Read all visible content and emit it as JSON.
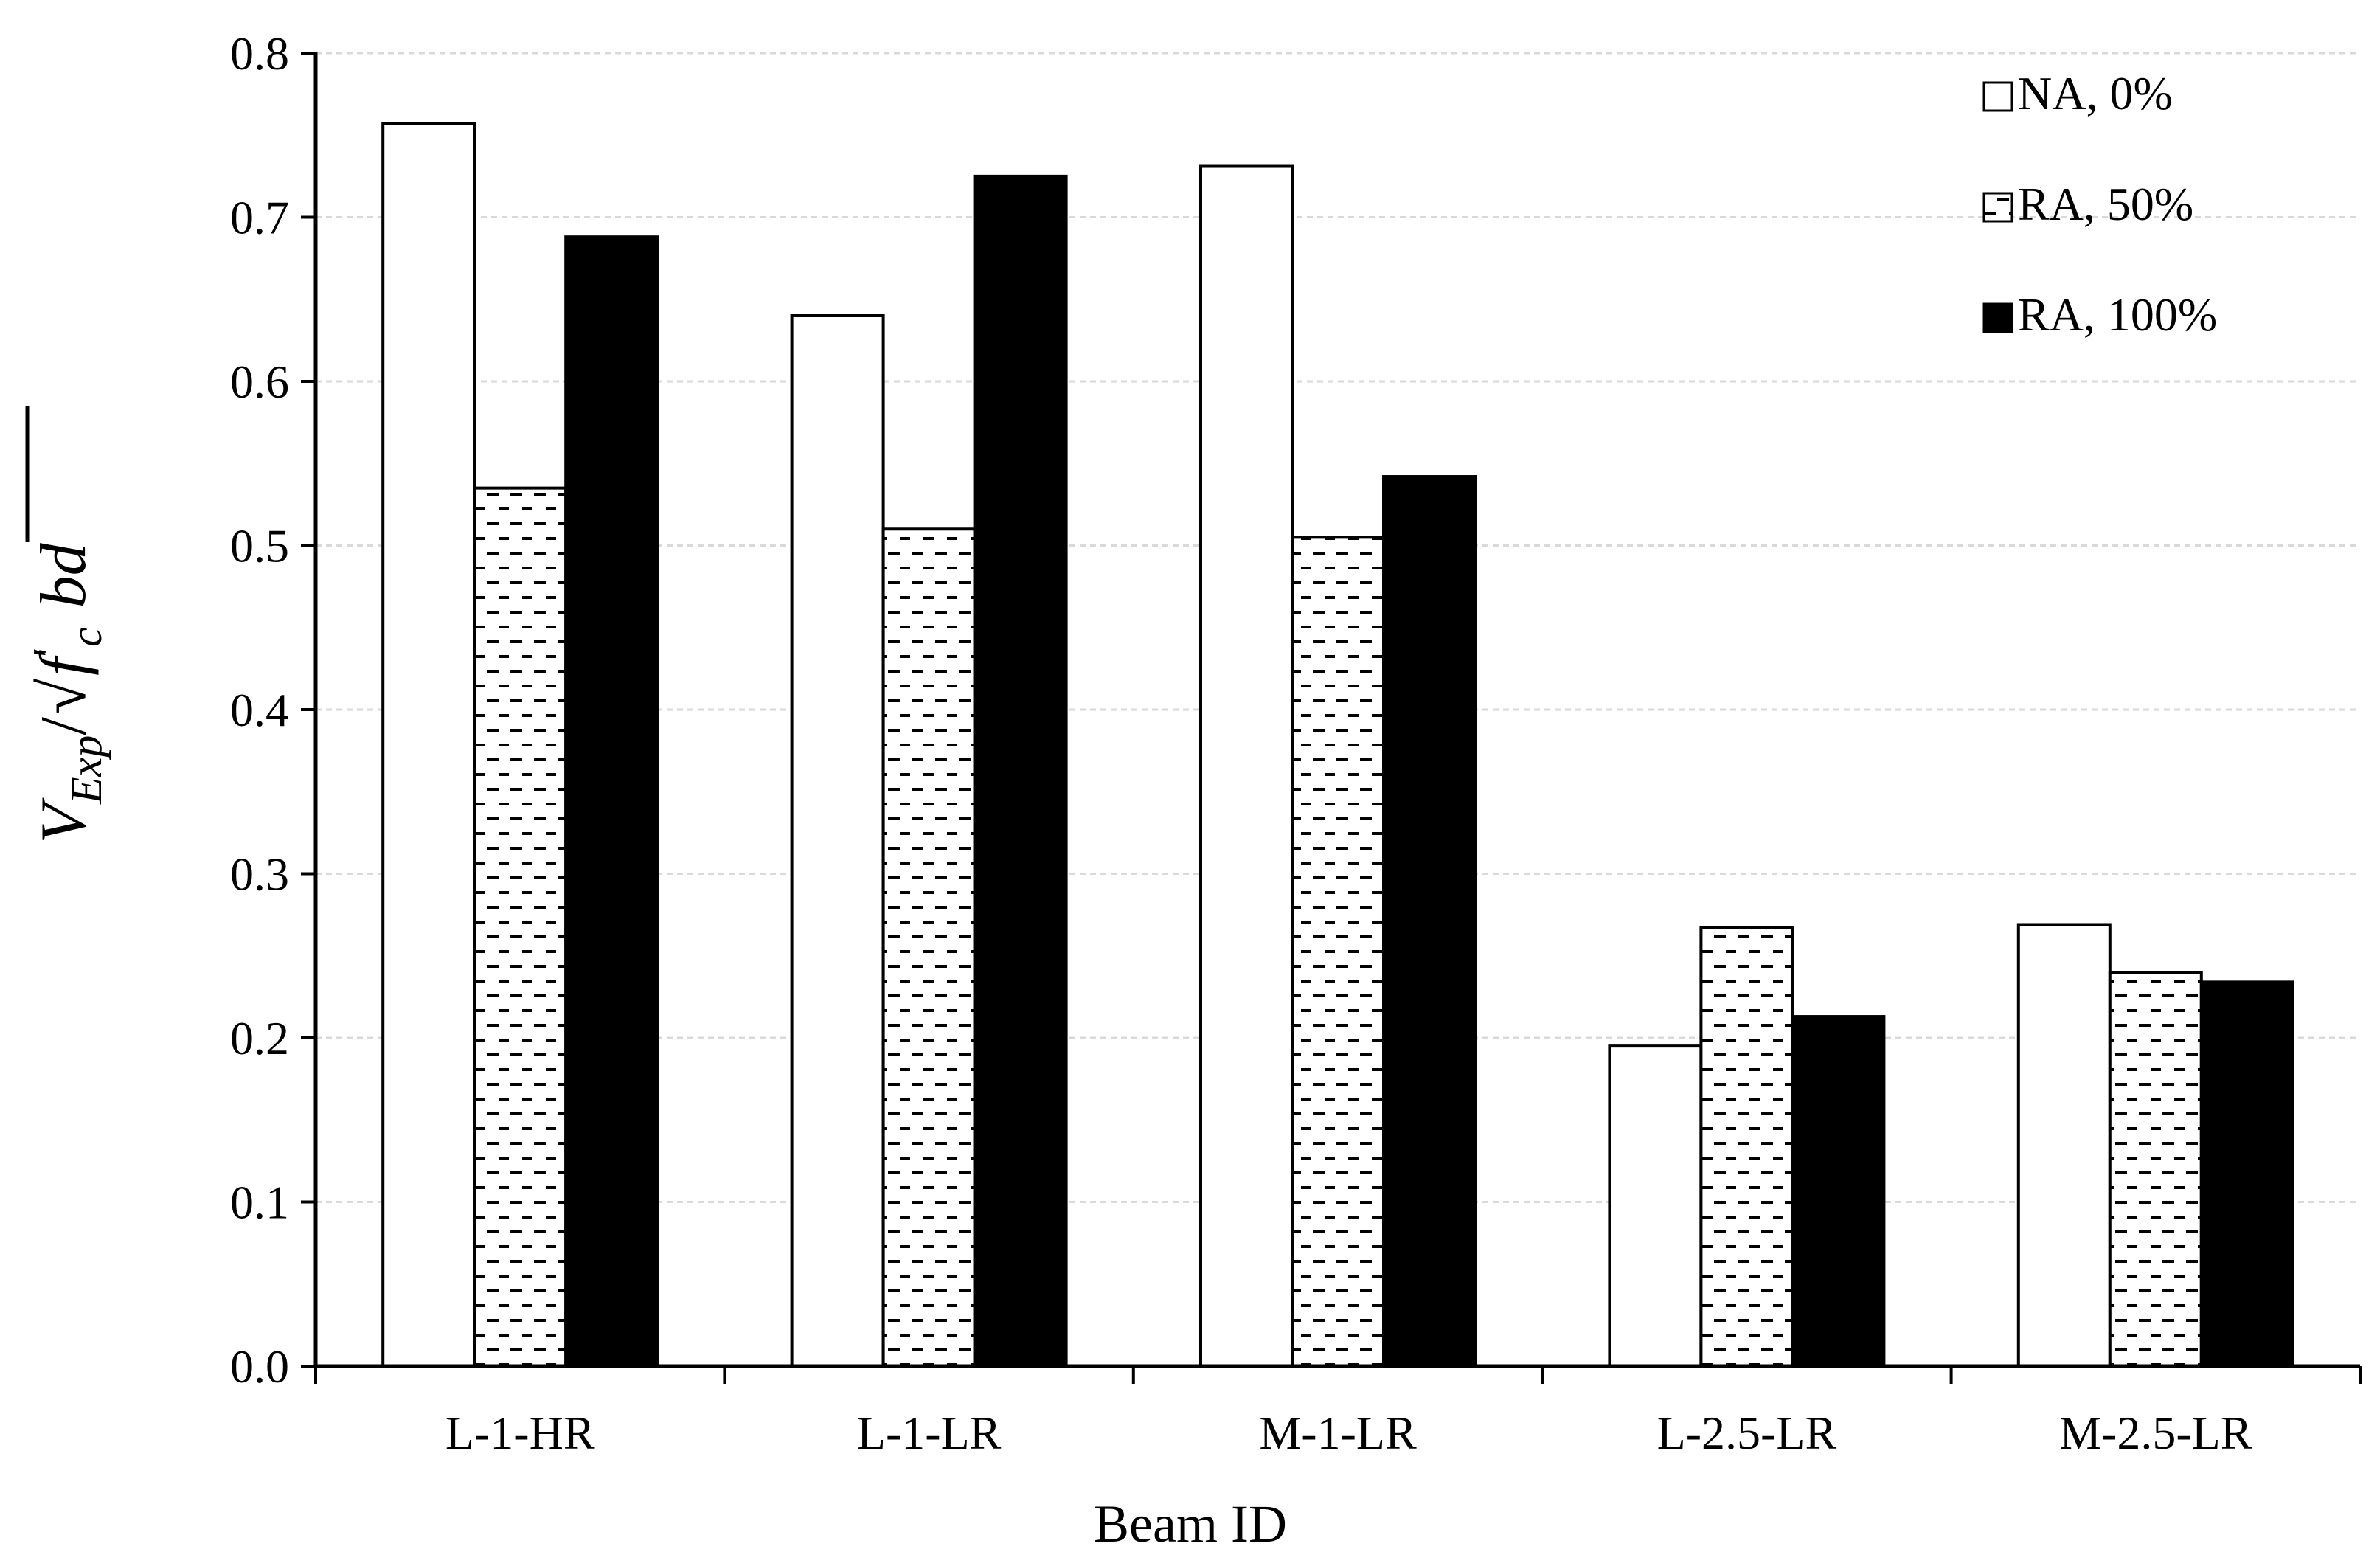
{
  "chart_data": {
    "type": "bar",
    "categories": [
      "L-1-HR",
      "L-1-LR",
      "M-1-LR",
      "L-2.5-LR",
      "M-2.5-LR"
    ],
    "series": [
      {
        "name": "NA, 0%",
        "values": [
          0.757,
          0.64,
          0.731,
          0.195,
          0.269
        ],
        "fill": "white"
      },
      {
        "name": "RA, 50%",
        "values": [
          0.535,
          0.51,
          0.505,
          0.267,
          0.24
        ],
        "fill": "dashed-pattern"
      },
      {
        "name": "RA, 100%",
        "values": [
          0.688,
          0.725,
          0.542,
          0.213,
          0.234
        ],
        "fill": "black"
      }
    ],
    "xlabel": "Beam ID",
    "ylabel": {
      "v": "V",
      "v_sub": "Exp",
      "slash": "/",
      "f": "f",
      "f_prime": "′",
      "f_sub": "c",
      "tail": "bd"
    },
    "ylim": [
      0,
      0.8
    ],
    "yticks": [
      "0.0",
      "0.1",
      "0.2",
      "0.3",
      "0.4",
      "0.5",
      "0.6",
      "0.7",
      "0.8"
    ],
    "grid": true,
    "legend_position": "top-right",
    "colors": {
      "axis": "#000000",
      "grid": "#d9d9d9",
      "bar_edge": "#000000",
      "bar_solid": "#000000",
      "bar_empty": "#ffffff"
    }
  }
}
